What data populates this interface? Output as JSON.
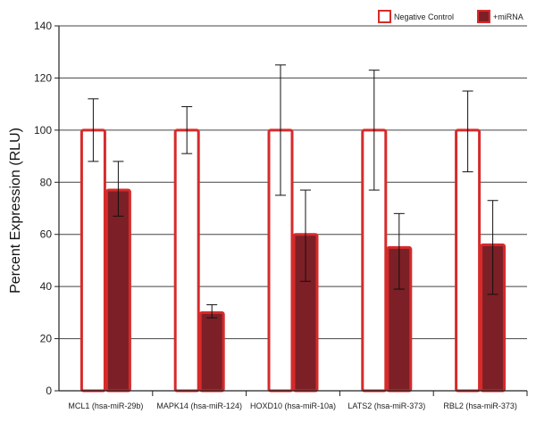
{
  "chart_data": {
    "type": "bar",
    "ylabel": "Percent Expression (RLU)",
    "xlabel": "",
    "ylim": [
      0,
      140
    ],
    "yticks": [
      0,
      20,
      40,
      60,
      80,
      100,
      120,
      140
    ],
    "grid": true,
    "legend_position": "top-right",
    "categories": [
      "MCL1 (hsa-miR-29b)",
      "MAPK14 (hsa-miR-124)",
      "HOXD10 (hsa-miR-10a)",
      "LATS2 (hsa-miR-373)",
      "RBL2 (hsa-miR-373)"
    ],
    "series": [
      {
        "name": "Negative Control",
        "values": [
          100,
          100,
          100,
          100,
          100
        ],
        "error_low": [
          88,
          91,
          75,
          77,
          84
        ],
        "error_high": [
          112,
          109,
          125,
          123,
          115
        ],
        "fill": "#ffffff",
        "stroke": "#d62b2b"
      },
      {
        "name": "+miRNA",
        "values": [
          77,
          30,
          60,
          55,
          56
        ],
        "error_low": [
          67,
          28,
          42,
          39,
          37
        ],
        "error_high": [
          88,
          33,
          77,
          68,
          73
        ],
        "fill": "#7d1f26",
        "stroke": "#d62b2b"
      }
    ]
  }
}
